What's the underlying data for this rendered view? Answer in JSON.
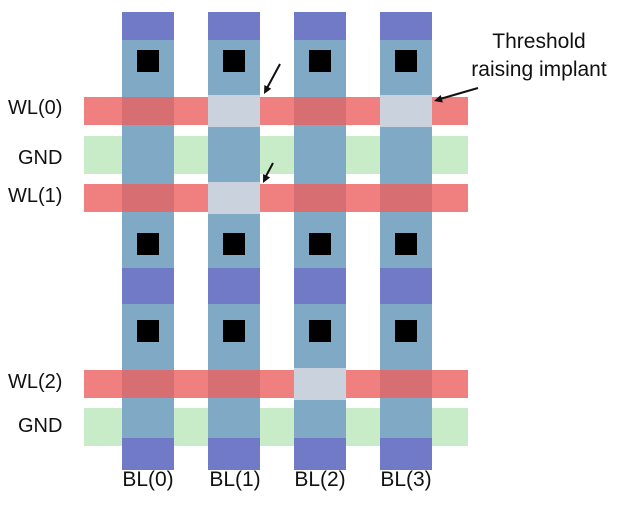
{
  "word_lines": [
    {
      "label": "WL(0)",
      "implant_on_bit_lines": [
        1,
        3
      ]
    },
    {
      "label": "WL(1)",
      "implant_on_bit_lines": [
        1
      ]
    },
    {
      "label": "WL(2)",
      "implant_on_bit_lines": [
        2
      ]
    }
  ],
  "ground_lines": [
    {
      "label": "GND"
    },
    {
      "label": "GND"
    }
  ],
  "bit_lines": [
    {
      "label": "BL(0)"
    },
    {
      "label": "BL(1)"
    },
    {
      "label": "BL(2)"
    },
    {
      "label": "BL(3)"
    }
  ],
  "callout": {
    "line1": "Threshold",
    "line2": "raising implant"
  },
  "colors": {
    "bit_line": "#7fa9c4",
    "bit_line_cap": "#6f72c8",
    "word_line": "#f08080",
    "word_line_crossing": "#d66e72",
    "ground_line": "#c8ecc8",
    "implant": "#c9d2dd",
    "contact": "#000000",
    "text": "#111111"
  }
}
